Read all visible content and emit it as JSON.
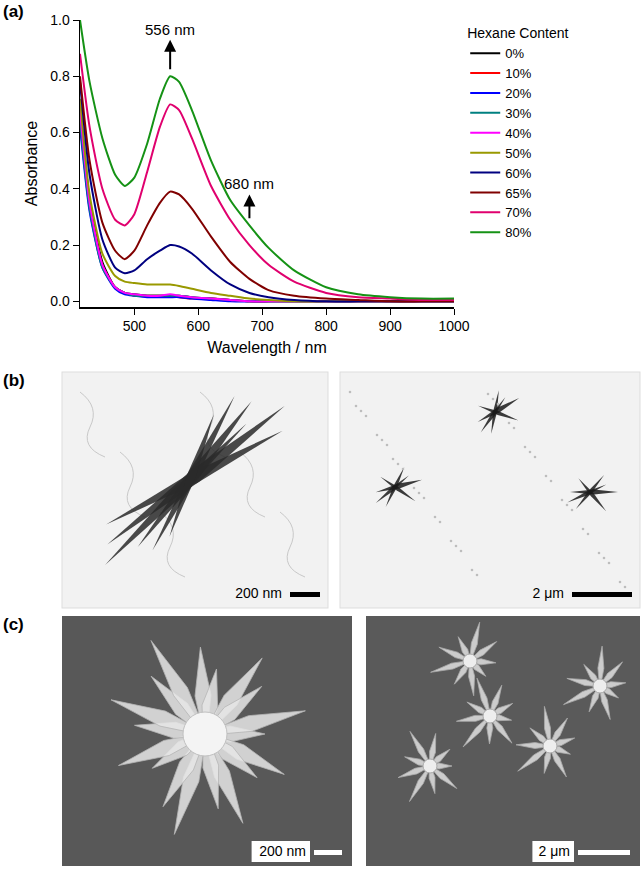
{
  "chart_data": {
    "type": "line",
    "x_label": "Wavelength / nm",
    "y_label": "Absorbance",
    "x": [
      415,
      430,
      450,
      470,
      485,
      500,
      520,
      540,
      556,
      570,
      590,
      620,
      650,
      680,
      710,
      750,
      800,
      850,
      900,
      950,
      1000
    ],
    "series": [
      {
        "name": "0%",
        "color": "#000000",
        "values": [
          0.7,
          0.36,
          0.14,
          0.05,
          0.03,
          0.025,
          0.02,
          0.02,
          0.02,
          0.02,
          0.015,
          0.01,
          0.005,
          0,
          0,
          0,
          0,
          0,
          0,
          0,
          0
        ]
      },
      {
        "name": "10%",
        "color": "#ff0000",
        "values": [
          0.66,
          0.34,
          0.13,
          0.05,
          0.03,
          0.02,
          0.02,
          0.02,
          0.02,
          0.015,
          0.01,
          0.01,
          0.005,
          0,
          0,
          0,
          0,
          0,
          0,
          0,
          0
        ]
      },
      {
        "name": "20%",
        "color": "#0000ff",
        "values": [
          0.62,
          0.32,
          0.12,
          0.045,
          0.025,
          0.02,
          0.015,
          0.015,
          0.015,
          0.015,
          0.01,
          0.005,
          0,
          0,
          0,
          0,
          0,
          0,
          0,
          0,
          0
        ]
      },
      {
        "name": "30%",
        "color": "#008080",
        "values": [
          0.64,
          0.33,
          0.12,
          0.05,
          0.03,
          0.02,
          0.02,
          0.02,
          0.02,
          0.02,
          0.015,
          0.01,
          0.005,
          0,
          0,
          0,
          0,
          0,
          0,
          0,
          0
        ]
      },
      {
        "name": "40%",
        "color": "#ff00ff",
        "values": [
          0.68,
          0.35,
          0.13,
          0.05,
          0.03,
          0.025,
          0.02,
          0.02,
          0.025,
          0.02,
          0.015,
          0.01,
          0.005,
          0,
          0,
          0,
          0,
          0,
          0,
          0,
          0
        ]
      },
      {
        "name": "50%",
        "color": "#999900",
        "values": [
          0.72,
          0.38,
          0.17,
          0.09,
          0.07,
          0.065,
          0.06,
          0.06,
          0.06,
          0.055,
          0.045,
          0.03,
          0.02,
          0.01,
          0.005,
          0,
          0,
          0,
          0,
          0,
          0
        ]
      },
      {
        "name": "60%",
        "color": "#000080",
        "values": [
          0.78,
          0.45,
          0.22,
          0.12,
          0.1,
          0.11,
          0.15,
          0.18,
          0.2,
          0.195,
          0.17,
          0.11,
          0.06,
          0.03,
          0.015,
          0.005,
          0,
          0,
          0,
          0,
          0
        ]
      },
      {
        "name": "65%",
        "color": "#800000",
        "values": [
          0.8,
          0.5,
          0.28,
          0.18,
          0.15,
          0.18,
          0.27,
          0.35,
          0.39,
          0.38,
          0.33,
          0.23,
          0.14,
          0.08,
          0.04,
          0.02,
          0.01,
          0.005,
          0,
          0,
          0
        ]
      },
      {
        "name": "70%",
        "color": "#e0006e",
        "values": [
          0.88,
          0.62,
          0.4,
          0.29,
          0.27,
          0.31,
          0.46,
          0.62,
          0.7,
          0.68,
          0.58,
          0.41,
          0.29,
          0.2,
          0.13,
          0.07,
          0.03,
          0.015,
          0.01,
          0.005,
          0.005
        ]
      },
      {
        "name": "80%",
        "color": "#159215",
        "values": [
          1.0,
          0.78,
          0.58,
          0.45,
          0.41,
          0.44,
          0.56,
          0.72,
          0.8,
          0.78,
          0.68,
          0.5,
          0.36,
          0.27,
          0.19,
          0.11,
          0.05,
          0.025,
          0.015,
          0.01,
          0.01
        ]
      }
    ],
    "xlim": [
      415,
      1000
    ],
    "xticks": [
      500,
      600,
      700,
      800,
      900,
      1000
    ],
    "ylim": [
      -0.02,
      1.0
    ],
    "yticks": [
      {
        "value": 0,
        "label": "0.0"
      },
      0.2,
      0.4,
      0.6,
      0.8,
      {
        "value": 1,
        "label": "1.0"
      }
    ],
    "legend": "right",
    "legend_title": "Hexane Content",
    "annotations": [
      {
        "text": "556 nm",
        "x": 556,
        "y": 0.93,
        "y_from": 0.82
      },
      {
        "text": "680 nm",
        "x": 680,
        "y": 0.38,
        "y_from": 0.29
      }
    ]
  },
  "figure": {
    "panel_labels": [
      "(a)",
      "(b)",
      "(c)"
    ],
    "micrographs": [
      {
        "panel": "(b)",
        "scale_bars": [
          "200 nm",
          "2 μm"
        ]
      },
      {
        "panel": "(c)",
        "scale_bars": [
          "200 nm",
          "2 μm"
        ]
      }
    ]
  }
}
